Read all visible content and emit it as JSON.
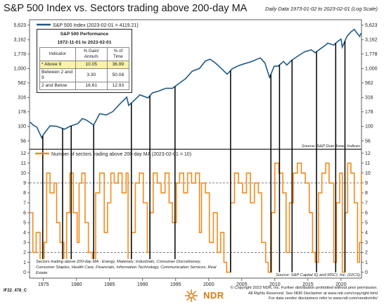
{
  "header": {
    "title": "S&P 500 Index vs. Sectors trading above 200-day MA",
    "subtitle": "Daily Data 1973-01-02 to 2023-02-01 (Log Scale)"
  },
  "performance_box": {
    "title_line1": "S&P 500 Performance",
    "title_line2": "1972-11-01 to 2023-02-01",
    "headers": [
      "Indicator",
      "% Gain/ Annum",
      "% of Time"
    ],
    "rows": [
      [
        "* Above 9",
        "10.05",
        "36.99"
      ],
      [
        "Between 2 and 9",
        "3.30",
        "50.08"
      ],
      [
        "2 and Below",
        "16.61",
        "12.93"
      ]
    ]
  },
  "sectors_note": "Sectors trading above 200-day MA : Energy, Materials, Industrials, Consumer Discretionary, Consumer Staples, Health Care, Financials, Information Technology, Communication Services, Real Estate",
  "footer": {
    "id": "IF22_478_C",
    "logo_text": "NDR",
    "disclaimer1": "© Copyright 2023 NDR, Inc. Further distribution prohibited without prior permission.",
    "disclaimer2": "All Rights Reserved. See NDR Disclaimer at www.ndr.com/copyright.html",
    "disclaimer3": "For data vendor disclaimers refer to www.ndr.com/vendorinfo/"
  },
  "colors": {
    "sp500": "#1f5a87",
    "sectors": "#f08c1e",
    "signal_line": "#000000",
    "highlight": "#fbf2a8"
  },
  "chart_data": [
    {
      "type": "line",
      "legend": "S&P 500 Index (2023-02-01 = 4119.21)",
      "source": "Source:  S&P Dow Jones Indices",
      "y_scale": "log",
      "y_ticks": [
        56,
        100,
        178,
        316,
        562,
        1000,
        1778,
        3162,
        5623
      ],
      "y_tick_labels": [
        "56",
        "100",
        "178",
        "316",
        "562",
        "1,000",
        "1,778",
        "3,162",
        "5,623"
      ],
      "ylim": [
        40,
        7000
      ],
      "xlim": [
        1972.9,
        2023.1
      ],
      "x": [
        1973.0,
        1973.5,
        1974.0,
        1974.75,
        1975.0,
        1976.0,
        1977.0,
        1978.2,
        1979.0,
        1980.2,
        1980.9,
        1981.5,
        1982.6,
        1983.5,
        1984.5,
        1985.5,
        1986.5,
        1987.6,
        1987.9,
        1988.5,
        1989.6,
        1990.8,
        1991.5,
        1992.5,
        1993.5,
        1994.5,
        1995.5,
        1996.5,
        1997.5,
        1998.6,
        1999.5,
        2000.2,
        2001.0,
        2001.7,
        2002.8,
        2003.5,
        2004.5,
        2005.5,
        2006.5,
        2007.8,
        2008.5,
        2009.2,
        2009.9,
        2010.5,
        2011.3,
        2011.8,
        2012.5,
        2013.5,
        2014.5,
        2015.5,
        2016.1,
        2016.9,
        2017.5,
        2018.0,
        2018.9,
        2019.5,
        2020.0,
        2020.2,
        2020.9,
        2021.5,
        2022.0,
        2022.8,
        2023.08
      ],
      "y": [
        118,
        104,
        97,
        63,
        72,
        102,
        100,
        89,
        100,
        111,
        136,
        128,
        105,
        165,
        157,
        180,
        240,
        320,
        230,
        265,
        350,
        310,
        380,
        410,
        455,
        455,
        550,
        670,
        900,
        1000,
        1350,
        1450,
        1250,
        1050,
        800,
        980,
        1120,
        1220,
        1320,
        1530,
        1250,
        700,
        1100,
        1100,
        1330,
        1150,
        1380,
        1650,
        1950,
        2100,
        1880,
        2200,
        2450,
        2750,
        2550,
        2950,
        3230,
        2350,
        3600,
        4300,
        4750,
        3600,
        4119
      ]
    },
    {
      "type": "area",
      "legend": "Number of sectors trading above 200-day MA (2023-02-01 = 10)",
      "source": "Source:  S&P Capital IQ and MSCI, Inc. (GICS)",
      "y_ticks": [
        0,
        1,
        2,
        3,
        4,
        5,
        6,
        7,
        8,
        9,
        10,
        11,
        12
      ],
      "ylim": [
        -0.6,
        12.4
      ],
      "reference_lines": [
        2,
        9
      ],
      "x": [
        1973.0,
        1973.4,
        1973.9,
        1974.5,
        1975.1,
        1975.5,
        1976.0,
        1976.6,
        1977.0,
        1977.5,
        1978.1,
        1978.5,
        1979.0,
        1979.5,
        1980.1,
        1980.4,
        1980.8,
        1981.3,
        1981.8,
        1982.4,
        1982.9,
        1983.5,
        1984.2,
        1984.7,
        1985.2,
        1985.7,
        1986.3,
        1986.9,
        1987.5,
        1987.8,
        1988.3,
        1988.9,
        1989.5,
        1990.1,
        1990.7,
        1991.1,
        1991.6,
        1992.2,
        1992.8,
        1993.4,
        1994.0,
        1994.5,
        1995.1,
        1995.6,
        1996.2,
        1996.8,
        1997.4,
        1998.0,
        1998.6,
        1998.9,
        1999.5,
        2000.1,
        2000.7,
        2001.3,
        2001.8,
        2002.3,
        2002.7,
        2003.3,
        2003.9,
        2004.5,
        2005.1,
        2005.7,
        2006.3,
        2006.9,
        2007.5,
        2008.0,
        2008.6,
        2009.0,
        2009.5,
        2010.0,
        2010.6,
        2011.2,
        2011.7,
        2012.2,
        2012.8,
        2013.4,
        2014.0,
        2014.6,
        2015.2,
        2015.7,
        2016.1,
        2016.6,
        2017.1,
        2017.7,
        2018.2,
        2018.9,
        2019.3,
        2019.8,
        2020.2,
        2020.6,
        2021.0,
        2021.5,
        2022.0,
        2022.5,
        2022.8,
        2023.08
      ],
      "y": [
        6,
        2,
        4,
        0,
        3,
        10,
        8,
        9,
        5,
        3,
        1,
        6,
        10,
        6,
        3,
        9,
        10,
        5,
        2,
        0,
        8,
        10,
        4,
        7,
        10,
        9,
        10,
        8,
        10,
        1,
        4,
        9,
        10,
        7,
        2,
        6,
        10,
        9,
        8,
        10,
        7,
        5,
        9,
        10,
        8,
        10,
        9,
        10,
        4,
        9,
        8,
        3,
        6,
        2,
        4,
        1,
        0,
        7,
        10,
        9,
        8,
        10,
        7,
        9,
        8,
        3,
        1,
        0,
        6,
        11,
        10,
        8,
        2,
        7,
        10,
        11,
        10,
        9,
        6,
        2,
        1,
        8,
        10,
        11,
        9,
        1,
        7,
        10,
        0,
        6,
        11,
        10,
        7,
        1,
        3,
        10
      ]
    },
    {
      "type": "vertical_signal_lines",
      "x": [
        1974.9,
        1977.9,
        1979.2,
        1982.6,
        1988.3,
        1991.1,
        1994.9,
        2003.3,
        2009.4,
        2010.7,
        2012.6,
        2016.3,
        2019.2,
        2020.6
      ]
    }
  ],
  "axis": {
    "x_ticks": [
      "1975",
      "1980",
      "1985",
      "1990",
      "1995",
      "2000",
      "2005",
      "2010",
      "2015",
      "2020"
    ],
    "x_tick_years": [
      1975,
      1980,
      1985,
      1990,
      1995,
      2000,
      2005,
      2010,
      2015,
      2020
    ]
  }
}
